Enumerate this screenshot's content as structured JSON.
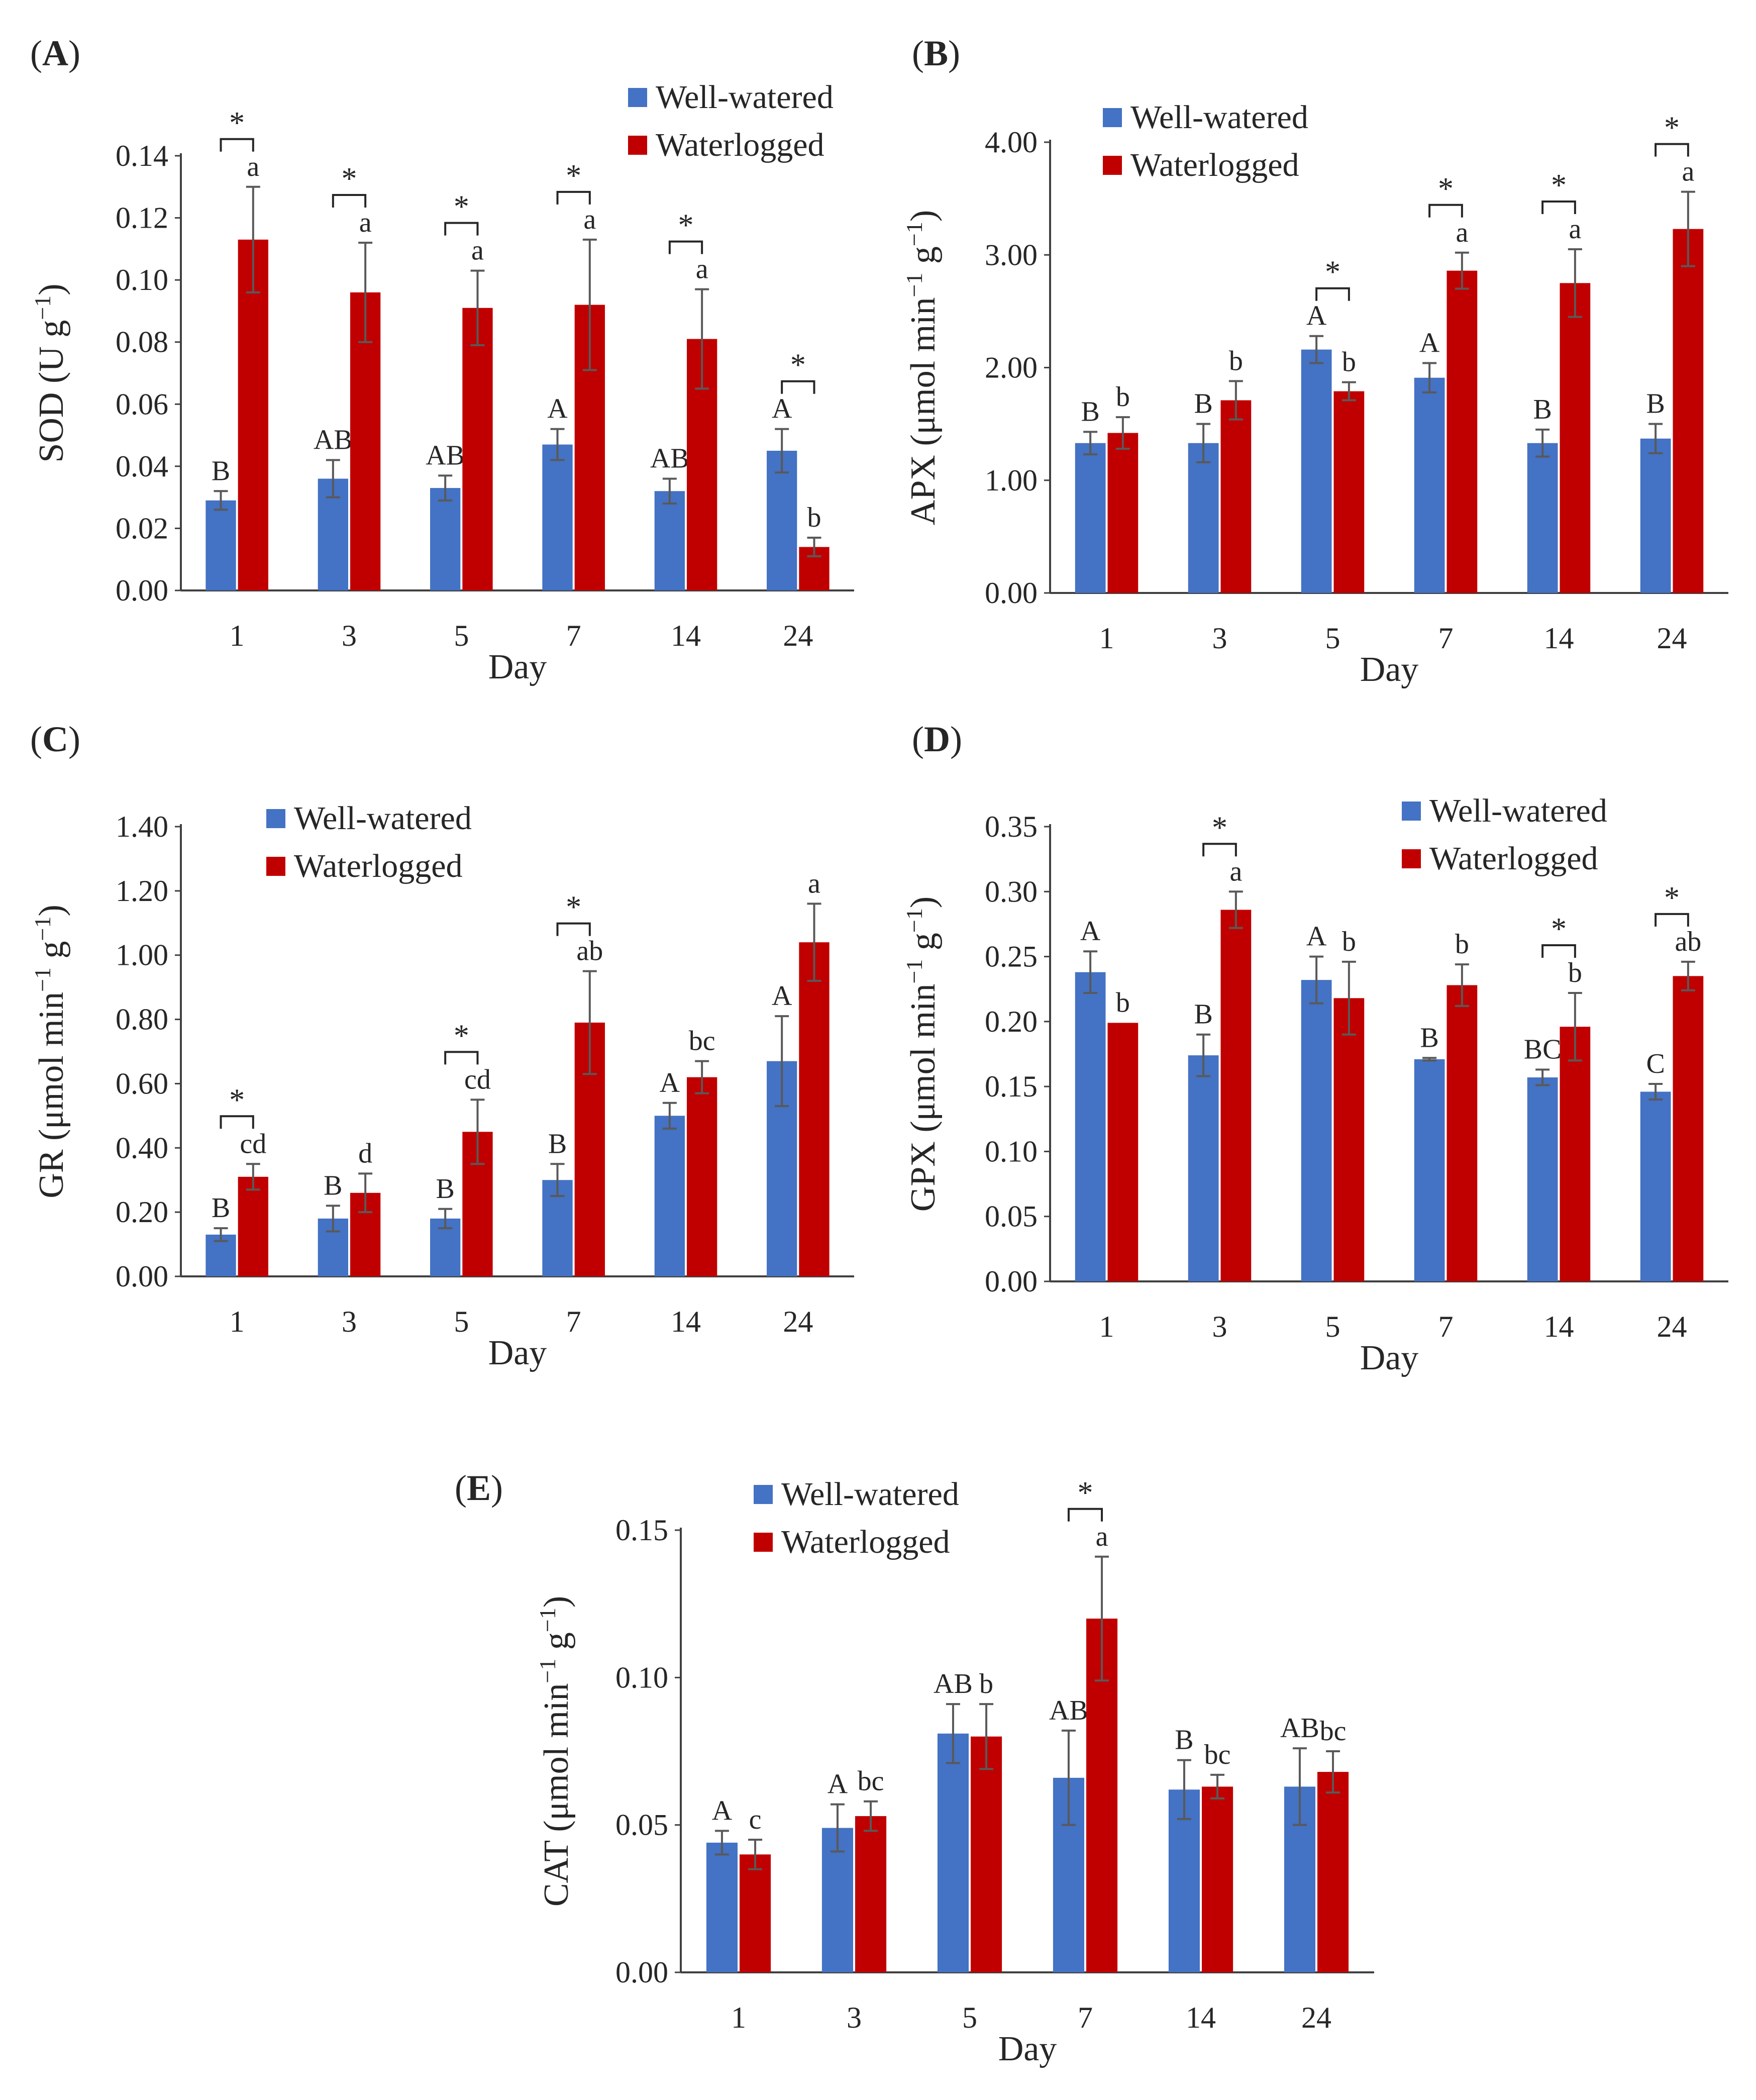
{
  "colors": {
    "well": "#4472C4",
    "water": "#C00000",
    "axis": "#404040",
    "err": "#595959"
  },
  "chart_data": [
    {
      "type": "bar",
      "panel": "A",
      "panel_label": "(A)",
      "panel_letter": "A",
      "xlabel": "Day",
      "ylabel": "SOD (U g",
      "ylabel_sup": "−1",
      "ylabel_end": ")",
      "ylim": [
        0,
        0.14
      ],
      "yticks": [
        "0.00",
        "0.02",
        "0.04",
        "0.06",
        "0.08",
        "0.10",
        "0.12",
        "0.14"
      ],
      "categories": [
        "1",
        "3",
        "5",
        "7",
        "14",
        "24"
      ],
      "legend_position": "top-right",
      "series": [
        {
          "name": "Well-watered",
          "values": [
            0.029,
            0.036,
            0.033,
            0.047,
            0.032,
            0.045
          ],
          "errors": [
            0.003,
            0.006,
            0.004,
            0.005,
            0.004,
            0.007
          ],
          "labels": [
            "B",
            "AB",
            "AB",
            "A",
            "AB",
            "A"
          ]
        },
        {
          "name": "Waterlogged",
          "values": [
            0.113,
            0.096,
            0.091,
            0.092,
            0.081,
            0.014
          ],
          "errors": [
            0.017,
            0.016,
            0.012,
            0.021,
            0.016,
            0.003
          ],
          "labels": [
            "a",
            "a",
            "a",
            "a",
            "a",
            "b"
          ]
        }
      ],
      "significant": [
        "*",
        "*",
        "*",
        "*",
        "*",
        "*"
      ]
    },
    {
      "type": "bar",
      "panel": "B",
      "panel_label": "(B)",
      "panel_letter": "B",
      "xlabel": "Day",
      "ylabel": "APX (μmol min",
      "ylabel_sup": "−1",
      "ylabel_end": " g",
      "ylabel_sup2": "−1",
      "ylabel_end2": ")",
      "ylim": [
        0,
        4.0
      ],
      "yticks": [
        "0.00",
        "1.00",
        "2.00",
        "3.00",
        "4.00"
      ],
      "categories": [
        "1",
        "3",
        "5",
        "7",
        "14",
        "24"
      ],
      "legend_position": "top-left",
      "series": [
        {
          "name": "Well-watered",
          "values": [
            1.33,
            1.33,
            2.16,
            1.91,
            1.33,
            1.37
          ],
          "errors": [
            0.1,
            0.17,
            0.12,
            0.13,
            0.12,
            0.13
          ],
          "labels": [
            "B",
            "B",
            "A",
            "A",
            "B",
            "B"
          ]
        },
        {
          "name": "Waterlogged",
          "values": [
            1.42,
            1.71,
            1.79,
            2.86,
            2.75,
            3.23
          ],
          "errors": [
            0.14,
            0.17,
            0.08,
            0.16,
            0.3,
            0.33
          ],
          "labels": [
            "b",
            "b",
            "b",
            "a",
            "a",
            "a"
          ]
        }
      ],
      "significant": [
        "",
        "",
        "*",
        "*",
        "*",
        "*"
      ]
    },
    {
      "type": "bar",
      "panel": "C",
      "panel_label": "(C)",
      "panel_letter": "C",
      "xlabel": "Day",
      "ylabel": "GR (μmol min",
      "ylabel_sup": "−1",
      "ylabel_end": " g",
      "ylabel_sup2": "−1",
      "ylabel_end2": ")",
      "ylim": [
        0,
        1.4
      ],
      "yticks": [
        "0.00",
        "0.20",
        "0.40",
        "0.60",
        "0.80",
        "1.00",
        "1.20",
        "1.40"
      ],
      "categories": [
        "1",
        "3",
        "5",
        "7",
        "14",
        "24"
      ],
      "legend_position": "top-left",
      "series": [
        {
          "name": "Well-watered",
          "values": [
            0.13,
            0.18,
            0.18,
            0.3,
            0.5,
            0.67
          ],
          "errors": [
            0.02,
            0.04,
            0.03,
            0.05,
            0.04,
            0.14
          ],
          "labels": [
            "B",
            "B",
            "B",
            "B",
            "A",
            "A"
          ]
        },
        {
          "name": "Waterlogged",
          "values": [
            0.31,
            0.26,
            0.45,
            0.79,
            0.62,
            1.04
          ],
          "errors": [
            0.04,
            0.06,
            0.1,
            0.16,
            0.05,
            0.12
          ],
          "labels": [
            "cd",
            "d",
            "cd",
            "ab",
            "bc",
            "a"
          ]
        }
      ],
      "significant": [
        "*",
        "",
        "*",
        "*",
        "",
        ""
      ]
    },
    {
      "type": "bar",
      "panel": "D",
      "panel_label": "(D)",
      "panel_letter": "D",
      "xlabel": "Day",
      "ylabel": "GPX (μmol min",
      "ylabel_sup": "−1",
      "ylabel_end": " g",
      "ylabel_sup2": "−1",
      "ylabel_end2": ")",
      "ylim": [
        0,
        0.35
      ],
      "yticks": [
        "0.00",
        "0.05",
        "0.10",
        "0.15",
        "0.20",
        "0.25",
        "0.30",
        "0.35"
      ],
      "categories": [
        "1",
        "3",
        "5",
        "7",
        "14",
        "24"
      ],
      "legend_position": "top-right",
      "series": [
        {
          "name": "Well-watered",
          "values": [
            0.238,
            0.174,
            0.232,
            0.171,
            0.157,
            0.146
          ],
          "errors": [
            0.016,
            0.016,
            0.018,
            0.001,
            0.006,
            0.006
          ],
          "labels": [
            "A",
            "B",
            "A",
            "B",
            "BC",
            "C"
          ]
        },
        {
          "name": "Waterlogged",
          "values": [
            0.199,
            0.286,
            0.218,
            0.228,
            0.196,
            0.235
          ],
          "errors": [
            0,
            0.014,
            0.028,
            0.016,
            0.026,
            0.011
          ],
          "labels": [
            "b",
            "a",
            "b",
            "b",
            "b",
            "ab"
          ]
        }
      ],
      "significant": [
        "",
        "*",
        "",
        "",
        "*",
        "*"
      ]
    },
    {
      "type": "bar",
      "panel": "E",
      "panel_label": "(E)",
      "panel_letter": "E",
      "xlabel": "Day",
      "ylabel": "CAT (μmol  min",
      "ylabel_sup": "−1",
      "ylabel_end": " g",
      "ylabel_sup2": "−1",
      "ylabel_end2": ")",
      "ylim": [
        0,
        0.15
      ],
      "yticks": [
        "0.00",
        "0.05",
        "0.10",
        "0.15"
      ],
      "categories": [
        "1",
        "3",
        "5",
        "7",
        "14",
        "24"
      ],
      "legend_position": "top-left",
      "series": [
        {
          "name": "Well-watered",
          "values": [
            0.044,
            0.049,
            0.081,
            0.066,
            0.062,
            0.063
          ],
          "errors": [
            0.004,
            0.008,
            0.01,
            0.016,
            0.01,
            0.013
          ],
          "labels": [
            "A",
            "A",
            "AB",
            "AB",
            "B",
            "AB"
          ]
        },
        {
          "name": "Waterlogged",
          "values": [
            0.04,
            0.053,
            0.08,
            0.12,
            0.063,
            0.068
          ],
          "errors": [
            0.005,
            0.005,
            0.011,
            0.021,
            0.004,
            0.007
          ],
          "labels": [
            "c",
            "bc",
            "b",
            "a",
            "bc",
            "bc"
          ]
        }
      ],
      "significant": [
        "",
        "",
        "",
        "*",
        "",
        ""
      ]
    }
  ]
}
